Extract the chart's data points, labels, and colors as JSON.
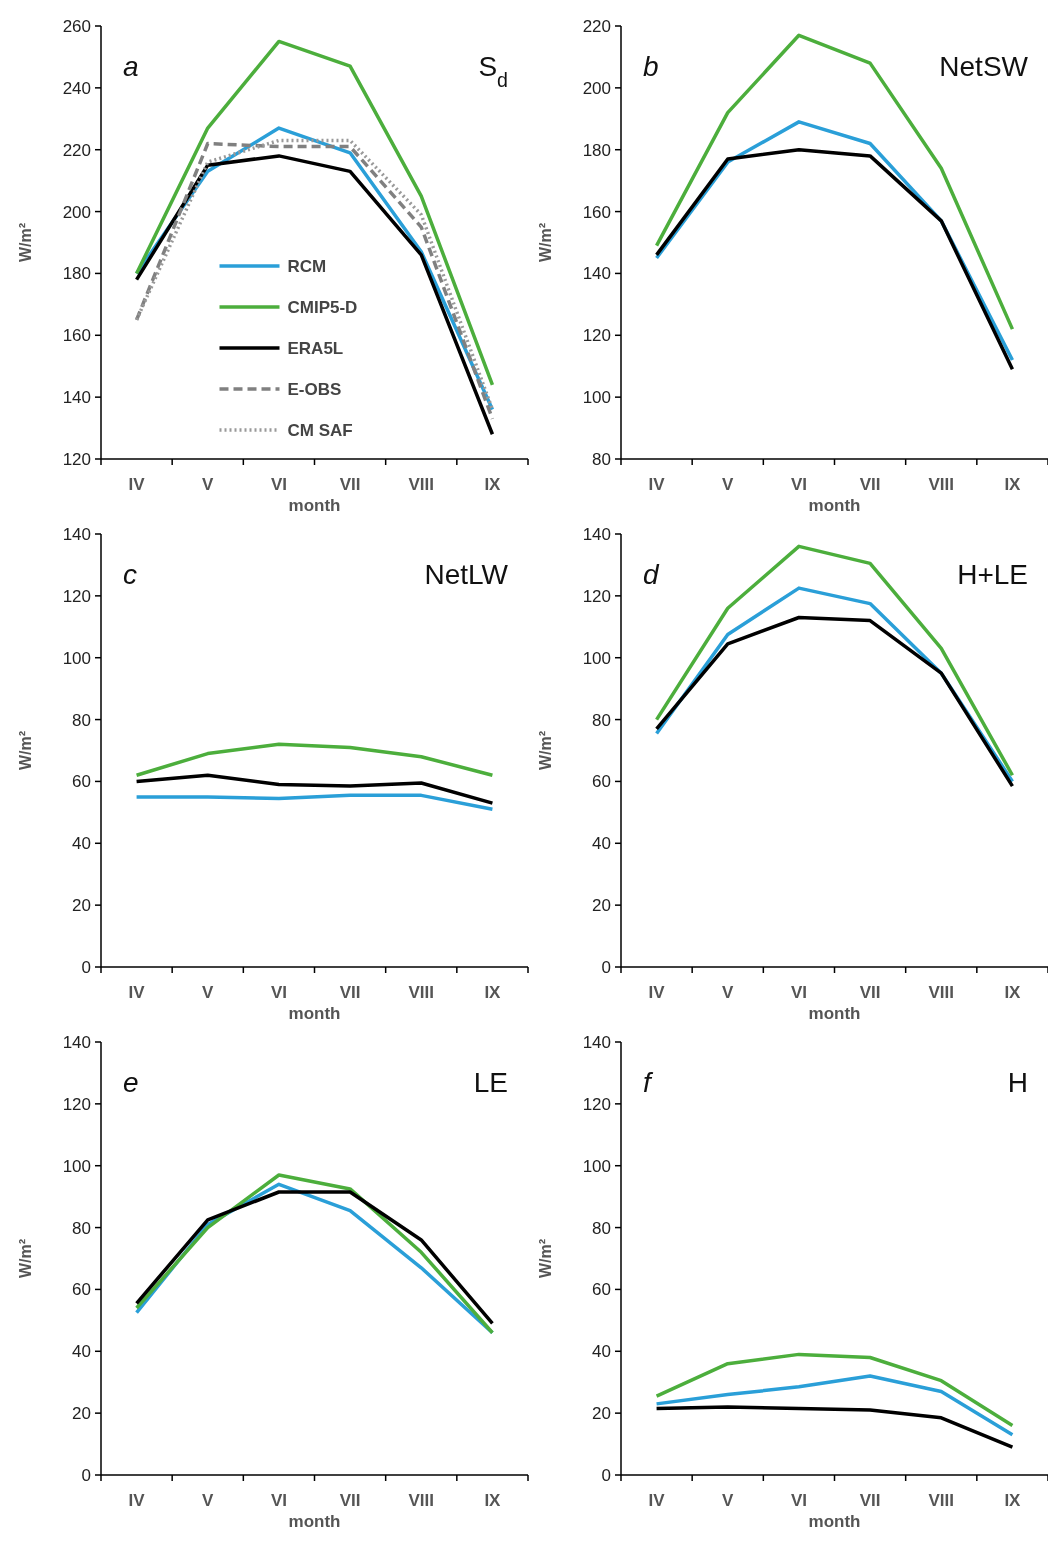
{
  "chart_data": [
    {
      "type": "line",
      "title": "a",
      "annotations": [
        "S$_{d}$"
      ],
      "categories": [
        "IV",
        "V",
        "VI",
        "VII",
        "VIII",
        "IX"
      ],
      "xlabel": "month",
      "ylabel": "W/m²",
      "ylim": [
        120,
        260
      ],
      "yticks": [
        120,
        140,
        160,
        180,
        200,
        220,
        240,
        260
      ],
      "grid": false,
      "legend": "center",
      "marker": "none",
      "series": [
        {
          "name": "RCM",
          "color": "#2a9fd8",
          "line_style": "solid",
          "values": [
            180,
            213,
            227,
            219,
            187,
            136
          ]
        },
        {
          "name": "CMIP5-D",
          "color": "#4cae3c",
          "line_style": "solid",
          "values": [
            180,
            227,
            255,
            247,
            205,
            144
          ]
        },
        {
          "name": "ERA5L",
          "color": "#000000",
          "line_style": "solid",
          "values": [
            178,
            215,
            218,
            213,
            186,
            128
          ]
        },
        {
          "name": "E-OBS",
          "color": "#808080",
          "line_style": "dashed",
          "values": [
            165,
            222,
            221,
            221,
            195,
            133
          ]
        },
        {
          "name": "CM SAF",
          "color": "#999999",
          "line_style": "dotted",
          "values": [
            165,
            216,
            223,
            223,
            199,
            136
          ]
        }
      ]
    },
    {
      "type": "line",
      "title": "b",
      "annotations": [
        "NetSW"
      ],
      "categories": [
        "IV",
        "V",
        "VI",
        "VII",
        "VIII",
        "IX"
      ],
      "xlabel": "month",
      "ylabel": "W/m²",
      "ylim": [
        80,
        220
      ],
      "yticks": [
        80,
        100,
        120,
        140,
        160,
        180,
        200,
        220
      ],
      "grid": false,
      "legend": false,
      "marker": "none",
      "series": [
        {
          "color": "#2a9fd8",
          "line_style": "solid",
          "values": [
            145,
            176,
            189,
            182,
            157,
            112
          ]
        },
        {
          "color": "#4cae3c",
          "line_style": "solid",
          "values": [
            149,
            192,
            217,
            208,
            174,
            122
          ]
        },
        {
          "color": "#000000",
          "line_style": "solid",
          "values": [
            146,
            177,
            180,
            178,
            157,
            109
          ]
        }
      ]
    },
    {
      "type": "line",
      "title": "c",
      "annotations": [
        "NetLW"
      ],
      "categories": [
        "IV",
        "V",
        "VI",
        "VII",
        "VIII",
        "IX"
      ],
      "xlabel": "month",
      "ylabel": "W/m²",
      "ylim": [
        0,
        140
      ],
      "yticks": [
        0,
        20,
        40,
        60,
        80,
        100,
        120,
        140
      ],
      "grid": false,
      "legend": false,
      "marker": "none",
      "series": [
        {
          "color": "#2a9fd8",
          "line_style": "solid",
          "values": [
            55,
            55,
            54.5,
            55.5,
            55.5,
            51
          ]
        },
        {
          "color": "#4cae3c",
          "line_style": "solid",
          "values": [
            62,
            69,
            72,
            71,
            68,
            62
          ]
        },
        {
          "color": "#000000",
          "line_style": "solid",
          "values": [
            60,
            62,
            59,
            58.5,
            59.5,
            53
          ]
        }
      ]
    },
    {
      "type": "line",
      "title": "d",
      "annotations": [
        "H+LE"
      ],
      "categories": [
        "IV",
        "V",
        "VI",
        "VII",
        "VIII",
        "IX"
      ],
      "xlabel": "month",
      "ylabel": "W/m²",
      "ylim": [
        0,
        140
      ],
      "yticks": [
        0,
        20,
        40,
        60,
        80,
        100,
        120,
        140
      ],
      "grid": false,
      "legend": false,
      "marker": "none",
      "series": [
        {
          "color": "#2a9fd8",
          "line_style": "solid",
          "values": [
            75.5,
            107.5,
            122.5,
            117.5,
            95,
            60
          ]
        },
        {
          "color": "#4cae3c",
          "line_style": "solid",
          "values": [
            80,
            116,
            136,
            130.5,
            103,
            62
          ]
        },
        {
          "color": "#000000",
          "line_style": "solid",
          "values": [
            77,
            104.5,
            113,
            112,
            95,
            58.5
          ]
        }
      ]
    },
    {
      "type": "line",
      "title": "e",
      "annotations": [
        "LE"
      ],
      "categories": [
        "IV",
        "V",
        "VI",
        "VII",
        "VIII",
        "IX"
      ],
      "xlabel": "month",
      "ylabel": "W/m²",
      "ylim": [
        0,
        140
      ],
      "yticks": [
        0,
        20,
        40,
        60,
        80,
        100,
        120,
        140
      ],
      "grid": false,
      "legend": false,
      "marker": "none",
      "series": [
        {
          "color": "#2a9fd8",
          "line_style": "solid",
          "values": [
            52.5,
            81,
            94,
            85.5,
            67,
            46
          ]
        },
        {
          "color": "#4cae3c",
          "line_style": "solid",
          "values": [
            54,
            80,
            97,
            92.5,
            72,
            46
          ]
        },
        {
          "color": "#000000",
          "line_style": "solid",
          "values": [
            55.5,
            82.5,
            91.5,
            91.5,
            76,
            49
          ]
        }
      ]
    },
    {
      "type": "line",
      "title": "f",
      "annotations": [
        "H"
      ],
      "categories": [
        "IV",
        "V",
        "VI",
        "VII",
        "VIII",
        "IX"
      ],
      "xlabel": "month",
      "ylabel": "W/m²",
      "ylim": [
        0,
        140
      ],
      "yticks": [
        0,
        20,
        40,
        60,
        80,
        100,
        120,
        140
      ],
      "grid": false,
      "legend": false,
      "marker": "none",
      "series": [
        {
          "color": "#2a9fd8",
          "line_style": "solid",
          "values": [
            23,
            26,
            28.5,
            32,
            27,
            13
          ]
        },
        {
          "color": "#4cae3c",
          "line_style": "solid",
          "values": [
            25.5,
            36,
            39,
            38,
            30.5,
            16
          ]
        },
        {
          "color": "#000000",
          "line_style": "solid",
          "values": [
            21.5,
            22,
            21.5,
            21,
            18.5,
            9
          ]
        }
      ]
    }
  ]
}
